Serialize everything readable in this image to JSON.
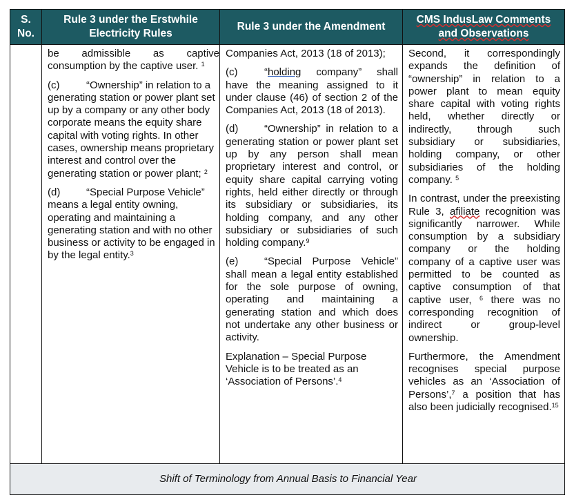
{
  "header": {
    "sno": "S. No.",
    "col_old": "Rule 3 under the Erstwhile Electricity Rules",
    "col_new": "Rule 3 under the Amendment",
    "col_comments": "CMS IndusLaw Comments and Observations"
  },
  "old_rules": {
    "p1": "be admissible as captive consumption by the captive user.",
    "p1_note": "1",
    "p2_label": "(c)",
    "p2": "“Ownership” in relation to a generating station or power plant set up by a company or any other body corporate means the equity share capital with voting rights. In other cases, ownership means proprietary interest and control over the generating station or power plant;",
    "p2_note": "2",
    "p3_label": "(d)",
    "p3": "“Special Purpose Vehicle” means a legal entity owning, operating and maintaining a generating station and with no other business or activity to be engaged in by the legal entity.",
    "p3_note": "3"
  },
  "amendment": {
    "p1": "Companies Act, 2013 (18 of 2013);",
    "p2_label": "(c)",
    "p2_q1": "“",
    "p2_underlined": "holding",
    "p2": " company” shall have the meaning assigned to it under clause (46) of section 2 of the Companies Act, 2013 (18 of 2013).",
    "p3_label": "(d)",
    "p3": "“Ownership” in relation to a generating station or power plant set up by any person shall mean proprietary interest and control, or equity share capital carrying voting rights, held either directly or through its subsidiary or subsidiaries, its holding company, and any other subsidiary or subsidiaries of such holding company.",
    "p3_note": "9",
    "p4_label": "(e)",
    "p4": "“Special Purpose Vehicle” shall mean a legal entity established for the sole purpose of owning, operating and maintaining a generating station and which does not undertake any other business or activity.",
    "p5": "Explanation – Special Purpose Vehicle is to be treated as an ‘Association of Persons’.",
    "p5_note": "4"
  },
  "comments": {
    "p1": "Second, it correspondingly expands the definition of “ownership” in relation to a power plant to mean equity share capital with voting rights held, whether directly or indirectly, through such subsidiary or subsidiaries, holding company, or other subsidiaries of the holding company.",
    "p1_note": "5",
    "p2a": "In contrast, under the preexisting Rule 3, ",
    "p2_misspelled": "afiliate",
    "p2b": " recognition was significantly narrower. While consumption by a subsidiary company or the holding company of a captive user was permitted to be counted as captive consumption of that captive user,",
    "p2_note": "6",
    "p2c": " there was no corresponding recognition of indirect or group-level ownership.",
    "p3a": "Furthermore, the Amendment recognises special purpose vehicles as an ‘Association of Persons’,",
    "p3_note": "7",
    "p3b": " a position that has also been judicially recognised.",
    "p3_note2": "15"
  },
  "footer": {
    "section_title": "Shift of Terminology from Annual Basis to Financial Year"
  },
  "colors": {
    "header_bg": "#1d5a62",
    "footer_bg": "#e8ebee"
  }
}
